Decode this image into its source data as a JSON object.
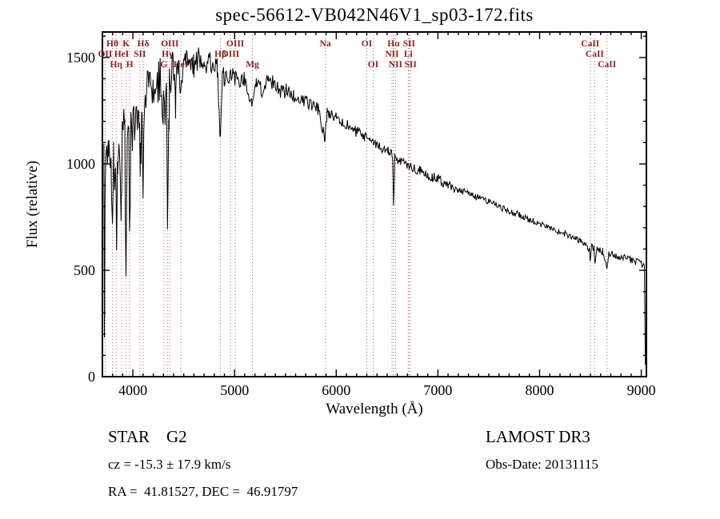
{
  "title": "spec-56612-VB042N46V1_sp03-172.fits",
  "colors": {
    "background": "#ffffff",
    "spectrum": "#000000",
    "frame": "#000000",
    "marker_line": "#b06a6a",
    "marker_label": "#8b2222"
  },
  "footer": {
    "class_label": "STAR    G2",
    "survey": "LAMOST DR3",
    "cz": "cz = -15.3 ± 17.9 km/s",
    "obs_date": "Obs-Date: 20131115",
    "coords": "RA =  41.81527, DEC =  46.91797"
  },
  "chart_data": {
    "type": "line",
    "title": "spec-56612-VB042N46V1_sp03-172.fits",
    "xlabel": "Wavelength (Å)",
    "ylabel": "Flux (relative)",
    "xlim": [
      3700,
      9050
    ],
    "ylim": [
      0,
      1620
    ],
    "x_ticks": [
      4000,
      5000,
      6000,
      7000,
      8000,
      9000
    ],
    "y_ticks": [
      0,
      500,
      1000,
      1500
    ],
    "x_minor_step": 100,
    "y_minor_step": 100,
    "grid": false,
    "legend": "none",
    "sample_step": 7,
    "noise_regions": [
      [
        4450,
        115
      ],
      [
        4900,
        55
      ],
      [
        5500,
        38
      ],
      [
        6200,
        30
      ],
      [
        7200,
        24
      ],
      [
        9050,
        16
      ]
    ],
    "continuum_anchors": [
      [
        3715,
        1020
      ],
      [
        3720,
        180
      ],
      [
        3726,
        900
      ],
      [
        3735,
        1050
      ],
      [
        3760,
        1080
      ],
      [
        3790,
        980
      ],
      [
        3800,
        700
      ],
      [
        3810,
        1050
      ],
      [
        3830,
        900
      ],
      [
        3840,
        650
      ],
      [
        3850,
        1060
      ],
      [
        3870,
        1100
      ],
      [
        3886,
        750
      ],
      [
        3895,
        1150
      ],
      [
        3920,
        1200
      ],
      [
        3933,
        340
      ],
      [
        3945,
        1150
      ],
      [
        3960,
        1100
      ],
      [
        3968,
        520
      ],
      [
        3980,
        1200
      ],
      [
        4000,
        1300
      ],
      [
        4060,
        1250
      ],
      [
        4075,
        1000
      ],
      [
        4090,
        1280
      ],
      [
        4101,
        900
      ],
      [
        4115,
        1320
      ],
      [
        4150,
        1360
      ],
      [
        4200,
        1300
      ],
      [
        4260,
        1420
      ],
      [
        4300,
        1250
      ],
      [
        4310,
        1200
      ],
      [
        4330,
        1380
      ],
      [
        4340,
        620
      ],
      [
        4355,
        1400
      ],
      [
        4380,
        1450
      ],
      [
        4420,
        1420
      ],
      [
        4471,
        1350
      ],
      [
        4500,
        1480
      ],
      [
        4550,
        1500
      ],
      [
        4600,
        1460
      ],
      [
        4650,
        1500
      ],
      [
        4700,
        1460
      ],
      [
        4750,
        1480
      ],
      [
        4800,
        1440
      ],
      [
        4830,
        1450
      ],
      [
        4861,
        1080
      ],
      [
        4880,
        1430
      ],
      [
        4920,
        1400
      ],
      [
        4980,
        1430
      ],
      [
        5010,
        1400
      ],
      [
        5050,
        1380
      ],
      [
        5100,
        1400
      ],
      [
        5170,
        1290
      ],
      [
        5210,
        1390
      ],
      [
        5270,
        1350
      ],
      [
        5330,
        1400
      ],
      [
        5400,
        1370
      ],
      [
        5460,
        1340
      ],
      [
        5520,
        1350
      ],
      [
        5580,
        1320
      ],
      [
        5640,
        1300
      ],
      [
        5700,
        1300
      ],
      [
        5760,
        1270
      ],
      [
        5820,
        1260
      ],
      [
        5890,
        1120
      ],
      [
        5910,
        1240
      ],
      [
        5970,
        1230
      ],
      [
        6030,
        1200
      ],
      [
        6090,
        1190
      ],
      [
        6150,
        1160
      ],
      [
        6210,
        1150
      ],
      [
        6270,
        1130
      ],
      [
        6330,
        1110
      ],
      [
        6390,
        1090
      ],
      [
        6450,
        1070
      ],
      [
        6510,
        1060
      ],
      [
        6555,
        1040
      ],
      [
        6563,
        790
      ],
      [
        6575,
        1030
      ],
      [
        6640,
        1010
      ],
      [
        6700,
        1000
      ],
      [
        6760,
        980
      ],
      [
        6820,
        970
      ],
      [
        6880,
        950
      ],
      [
        6940,
        940
      ],
      [
        7000,
        930
      ],
      [
        7100,
        900
      ],
      [
        7200,
        880
      ],
      [
        7300,
        860
      ],
      [
        7400,
        840
      ],
      [
        7500,
        820
      ],
      [
        7600,
        800
      ],
      [
        7700,
        780
      ],
      [
        7800,
        760
      ],
      [
        7900,
        740
      ],
      [
        8000,
        720
      ],
      [
        8100,
        700
      ],
      [
        8200,
        680
      ],
      [
        8300,
        660
      ],
      [
        8400,
        640
      ],
      [
        8490,
        600
      ],
      [
        8498,
        540
      ],
      [
        8510,
        610
      ],
      [
        8535,
        600
      ],
      [
        8542,
        530
      ],
      [
        8560,
        600
      ],
      [
        8620,
        590
      ],
      [
        8662,
        500
      ],
      [
        8680,
        580
      ],
      [
        8750,
        570
      ],
      [
        8820,
        560
      ],
      [
        8890,
        550
      ],
      [
        8950,
        540
      ],
      [
        9000,
        530
      ],
      [
        9030,
        520
      ],
      [
        9040,
        60
      ]
    ],
    "line_markers": [
      {
        "label": "Hθ",
        "wavelength": 3798,
        "row": 1
      },
      {
        "label": "K",
        "wavelength": 3933,
        "row": 1
      },
      {
        "label": "Hδ",
        "wavelength": 4101,
        "row": 1
      },
      {
        "label": "OIII",
        "wavelength": 4363,
        "row": 1
      },
      {
        "label": "OIII",
        "wavelength": 5007,
        "row": 1
      },
      {
        "label": "Na",
        "wavelength": 5893,
        "row": 1
      },
      {
        "label": "OI",
        "wavelength": 6300,
        "row": 1
      },
      {
        "label": "Hα",
        "wavelength": 6563,
        "row": 1
      },
      {
        "label": "SII",
        "wavelength": 6716,
        "row": 1
      },
      {
        "label": "CaII",
        "wavelength": 8498,
        "row": 1
      },
      {
        "label": "OII",
        "wavelength": 3727,
        "row": 2
      },
      {
        "label": "HeI",
        "wavelength": 3889,
        "row": 2
      },
      {
        "label": "SII",
        "wavelength": 4068,
        "row": 2
      },
      {
        "label": "Hγ",
        "wavelength": 4340,
        "row": 2
      },
      {
        "label": "Hβ",
        "wavelength": 4861,
        "row": 2
      },
      {
        "label": "OIII",
        "wavelength": 4959,
        "row": 2
      },
      {
        "label": "NII",
        "wavelength": 6548,
        "row": 2
      },
      {
        "label": "Li",
        "wavelength": 6708,
        "row": 2
      },
      {
        "label": "CaII",
        "wavelength": 8542,
        "row": 2
      },
      {
        "label": "Hη",
        "wavelength": 3835,
        "row": 3
      },
      {
        "label": "H",
        "wavelength": 3968,
        "row": 3
      },
      {
        "label": "G",
        "wavelength": 4304,
        "row": 3
      },
      {
        "label": "HeI",
        "wavelength": 4471,
        "row": 3
      },
      {
        "label": "Mg",
        "wavelength": 5175,
        "row": 3
      },
      {
        "label": "OI",
        "wavelength": 6363,
        "row": 3
      },
      {
        "label": "NII",
        "wavelength": 6583,
        "row": 3
      },
      {
        "label": "SII",
        "wavelength": 6731,
        "row": 3
      },
      {
        "label": "CaII",
        "wavelength": 8662,
        "row": 3
      }
    ]
  }
}
